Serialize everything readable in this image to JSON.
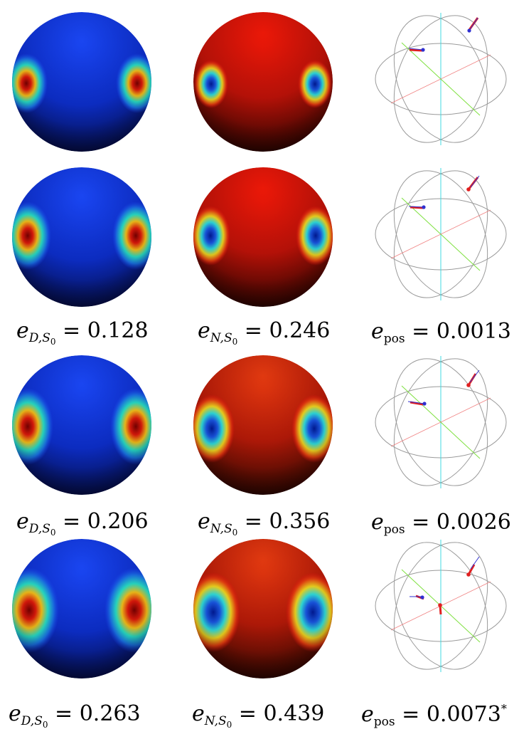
{
  "figure": {
    "rows": [
      {
        "captions": null
      },
      {
        "captions": {
          "dirichlet": "0.128",
          "neumann": "0.246",
          "position": "0.0013",
          "position_mark": ""
        }
      },
      {
        "captions": {
          "dirichlet": "0.206",
          "neumann": "0.356",
          "position": "0.0026",
          "position_mark": ""
        }
      },
      {
        "captions": {
          "dirichlet": "0.263",
          "neumann": "0.439",
          "position": "0.0073",
          "position_mark": "*"
        }
      }
    ],
    "labels": {
      "e": "e",
      "sub_D": "D,S",
      "sub_N": "N,S",
      "sub_zero": "0",
      "sub_pos": "pos",
      "equals": " = "
    },
    "colors": {
      "dirichlet_base": "#0a2fd6",
      "dirichlet_hot": "#8b0000",
      "neumann_base": "#e01010",
      "neumann_cold": "#0020c0",
      "circle_gray": "#9a9a9a",
      "axis_red": "#f08080",
      "axis_green": "#7fe040",
      "axis_cyan": "#40d8e0",
      "source_true": "#3030d0",
      "source_est": "#e02020"
    }
  }
}
